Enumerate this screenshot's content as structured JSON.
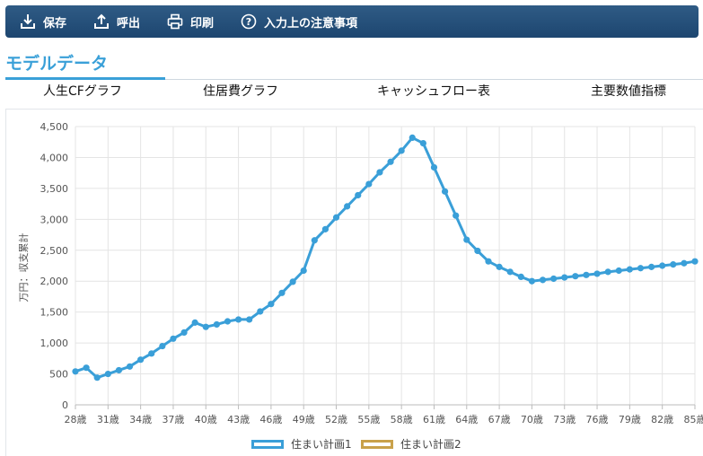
{
  "toolbar": {
    "save": "保存",
    "load": "呼出",
    "print": "印刷",
    "notes": "入力上の注意事項"
  },
  "section_title": "モデルデータ",
  "tabs": [
    "人生CFグラフ",
    "住居費グラフ",
    "キャッシュフロー表",
    "主要数値指標"
  ],
  "active_tab": "人生CFグラフ",
  "colors": {
    "series1": "#3a9fd8",
    "series2": "#c9a14a",
    "toolbar": "#1d4670"
  },
  "chart_data": {
    "type": "line",
    "ylabel": "万円：収支累計",
    "ylim": [
      0,
      4500
    ],
    "yticks": [
      "0",
      "500",
      "1,000",
      "1,500",
      "2,000",
      "2,500",
      "3,000",
      "3,500",
      "4,000",
      "4,500"
    ],
    "xlabels": [
      "28歳",
      "31歳",
      "34歳",
      "37歳",
      "40歳",
      "43歳",
      "46歳",
      "49歳",
      "52歳",
      "55歳",
      "58歳",
      "61歳",
      "64歳",
      "67歳",
      "70歳",
      "73歳",
      "76歳",
      "79歳",
      "82歳",
      "85歳"
    ],
    "grid": true,
    "legend_position": "bottom",
    "series": [
      {
        "name": "住まい計画1",
        "ages": [
          28,
          29,
          30,
          31,
          32,
          33,
          34,
          35,
          36,
          37,
          38,
          39,
          40,
          41,
          42,
          43,
          44,
          45,
          46,
          47,
          48,
          49,
          50,
          51,
          52,
          53,
          54,
          55,
          56,
          57,
          58,
          59,
          60,
          61,
          62,
          63,
          64,
          65,
          66,
          67,
          68,
          69,
          70,
          71,
          72,
          73,
          74,
          75,
          76,
          77,
          78,
          79,
          80,
          81,
          82,
          83,
          84,
          85
        ],
        "values": [
          540,
          600,
          440,
          500,
          560,
          620,
          730,
          830,
          950,
          1070,
          1170,
          1330,
          1260,
          1300,
          1350,
          1380,
          1380,
          1510,
          1630,
          1810,
          1990,
          2170,
          2660,
          2840,
          3030,
          3210,
          3390,
          3570,
          3760,
          3930,
          4110,
          4320,
          4230,
          3840,
          3450,
          3060,
          2670,
          2490,
          2320,
          2230,
          2150,
          2070,
          2000,
          2020,
          2040,
          2060,
          2080,
          2100,
          2120,
          2150,
          2170,
          2190,
          2210,
          2230,
          2250,
          2270,
          2290,
          2320
        ]
      },
      {
        "name": "住まい計画2",
        "ages": [],
        "values": []
      }
    ]
  }
}
